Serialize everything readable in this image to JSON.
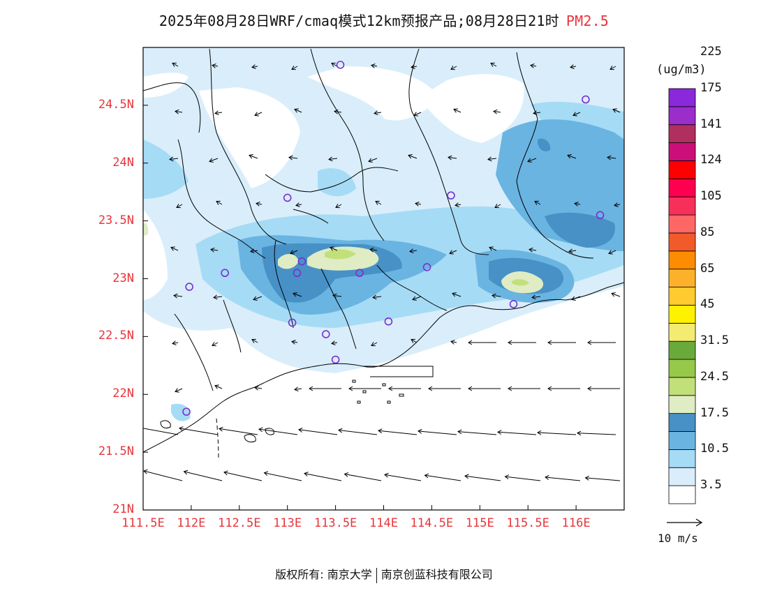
{
  "title": {
    "main": "2025年08月28日WRF/cmaq模式12km预报产品;08月28日21时",
    "pollutant": "PM2.5"
  },
  "axes": {
    "y_ticks": [
      "24.5N",
      "24N",
      "23.5N",
      "23N",
      "22.5N",
      "22N",
      "21.5N",
      "21N"
    ],
    "x_ticks": [
      "111.5E",
      "112E",
      "112.5E",
      "113E",
      "113.5E",
      "114E",
      "114.5E",
      "115E",
      "115.5E",
      "116E"
    ],
    "lon_range": [
      111.5,
      116.5
    ],
    "lat_range": [
      21,
      25
    ],
    "tick_color": "#e8343a"
  },
  "legend": {
    "unit": "(ug/m3)",
    "colors": [
      "#ffffff",
      "#d9eefa",
      "#a6dbf5",
      "#6ab4e2",
      "#4791c6",
      "#dfecc4",
      "#c2e07a",
      "#96c84a",
      "#6aaa3a",
      "#f4ec70",
      "#fff200",
      "#ffcb30",
      "#fdb12b",
      "#fe8c00",
      "#f35a2a",
      "#fe6766",
      "#f7305a",
      "#ff0050",
      "#ff0000",
      "#cc0e7a",
      "#b12f5f",
      "#9b2dcb",
      "#8a28dc"
    ],
    "labels": [
      "3.5",
      "10.5",
      "17.5",
      "24.5",
      "31.5",
      "45",
      "65",
      "85",
      "105",
      "124",
      "141",
      "175",
      "225"
    ]
  },
  "wind_reference": "10 m/s",
  "footer": {
    "left": "版权所有: 南京大学",
    "right": "南京创蓝科技有限公司"
  }
}
